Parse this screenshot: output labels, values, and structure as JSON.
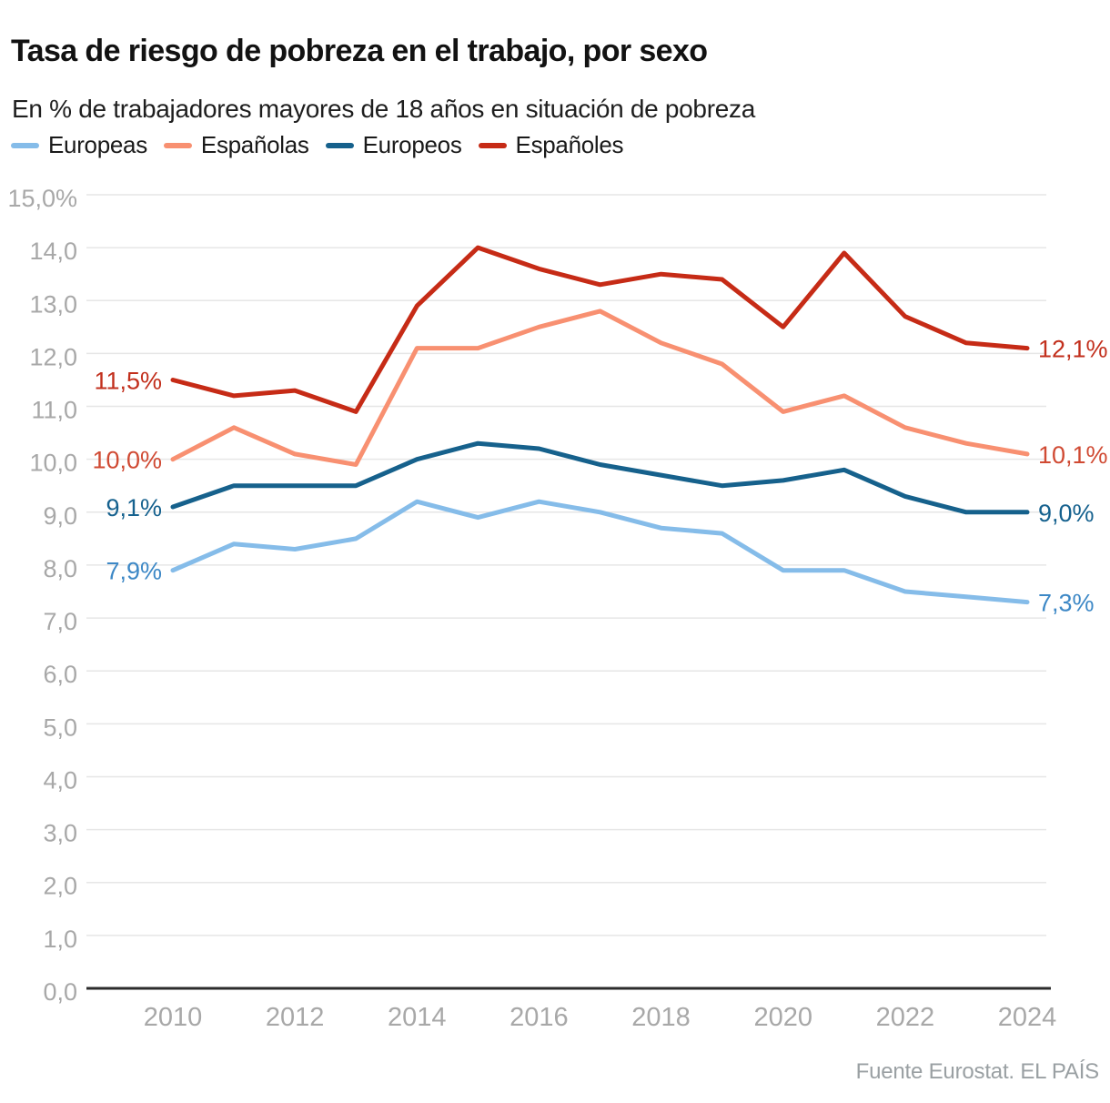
{
  "chart_data": {
    "type": "line",
    "title": "Tasa de riesgo de pobreza en el trabajo, por sexo",
    "subtitle": "En % de trabajadores mayores de 18 años en situación de pobreza",
    "x": [
      2010,
      2011,
      2012,
      2013,
      2014,
      2015,
      2016,
      2017,
      2018,
      2019,
      2020,
      2021,
      2022,
      2023,
      2024
    ],
    "x_tick_labels": [
      "2010",
      "2012",
      "2014",
      "2016",
      "2018",
      "2020",
      "2022",
      "2024"
    ],
    "x_tick_years": [
      2010,
      2012,
      2014,
      2016,
      2018,
      2020,
      2022,
      2024
    ],
    "ylim": [
      0,
      15
    ],
    "y_tick_step": 1,
    "y_tick_labels": [
      "0,0",
      "1,0",
      "2,0",
      "3,0",
      "4,0",
      "5,0",
      "6,0",
      "7,0",
      "8,0",
      "9,0",
      "10,0",
      "11,0",
      "12,0",
      "13,0",
      "14,0",
      "15,0%"
    ],
    "grid": true,
    "legend_position": "top",
    "series": [
      {
        "name": "Europeas",
        "color": "#85bce9",
        "label_color": "#3d88c6",
        "start_label": "7,9%",
        "end_label": "7,3%",
        "values": [
          7.9,
          8.4,
          8.3,
          8.5,
          9.2,
          8.9,
          9.2,
          9.0,
          8.7,
          8.6,
          7.9,
          7.9,
          7.5,
          7.4,
          7.3
        ]
      },
      {
        "name": "Españolas",
        "color": "#f89071",
        "label_color": "#d04a33",
        "start_label": "10,0%",
        "end_label": "10,1%",
        "values": [
          10.0,
          10.6,
          10.1,
          9.9,
          12.1,
          12.1,
          12.5,
          12.8,
          12.2,
          11.8,
          10.9,
          11.2,
          10.6,
          10.3,
          10.1
        ]
      },
      {
        "name": "Europeos",
        "color": "#16618c",
        "label_color": "#15618e",
        "start_label": "9,1%",
        "end_label": "9,0%",
        "values": [
          9.1,
          9.5,
          9.5,
          9.5,
          10.0,
          10.3,
          10.2,
          9.9,
          9.7,
          9.5,
          9.6,
          9.8,
          9.3,
          9.0,
          9.0
        ]
      },
      {
        "name": "Españoles",
        "color": "#c62b16",
        "label_color": "#c22f1c",
        "start_label": "11,5%",
        "end_label": "12,1%",
        "values": [
          11.5,
          11.2,
          11.3,
          10.9,
          12.9,
          14.0,
          13.6,
          13.3,
          13.5,
          13.4,
          12.5,
          13.9,
          12.7,
          12.2,
          12.1
        ]
      }
    ],
    "source": "Fuente Eurostat. EL PAÍS"
  }
}
